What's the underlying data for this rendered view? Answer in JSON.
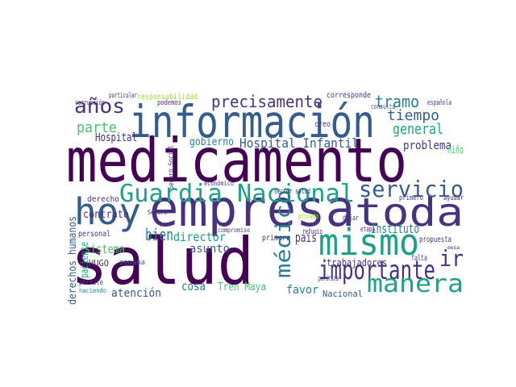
{
  "chart_data": {
    "type": "wordcloud",
    "words": [
      {
        "text": "medicamento",
        "weight": 75,
        "color": "#440154"
      },
      {
        "text": "salud",
        "weight": 80,
        "color": "#440154"
      },
      {
        "text": "empresa",
        "weight": 62,
        "color": "#46327e"
      },
      {
        "text": "información",
        "weight": 55,
        "color": "#365c8d"
      },
      {
        "text": "hoy",
        "weight": 45,
        "color": "#365c8d"
      },
      {
        "text": "toda",
        "weight": 48,
        "color": "#46327e"
      },
      {
        "text": "mismo",
        "weight": 45,
        "color": "#1fa187"
      },
      {
        "text": "Guardia Nacional",
        "weight": 30,
        "color": "#1fa187"
      },
      {
        "text": "importante",
        "weight": 32,
        "color": "#46327e"
      },
      {
        "text": "manera",
        "weight": 30,
        "color": "#1fa187"
      },
      {
        "text": "servicio",
        "weight": 28,
        "color": "#365c8d"
      },
      {
        "text": "años",
        "weight": 25,
        "color": "#46327e"
      },
      {
        "text": "precisamente",
        "weight": 20,
        "color": "#46327e"
      },
      {
        "text": "tramo",
        "weight": 20,
        "color": "#277f8e"
      },
      {
        "text": "parte",
        "weight": 18,
        "color": "#4ac16d"
      },
      {
        "text": "tiempo",
        "weight": 18,
        "color": "#365c8d"
      },
      {
        "text": "general",
        "weight": 18,
        "color": "#1fa187"
      },
      {
        "text": "Hospital Infantil",
        "weight": 16,
        "color": "#365c8d"
      },
      {
        "text": "médico",
        "weight": 26,
        "color": "#277f8e"
      },
      {
        "text": "ir",
        "weight": 28,
        "color": "#46327e"
      },
      {
        "text": "bien",
        "weight": 20,
        "color": "#277f8e"
      },
      {
        "text": "país",
        "weight": 16,
        "color": "#46327e"
      },
      {
        "text": "Instituto",
        "weight": 16,
        "color": "#277f8e"
      },
      {
        "text": "director",
        "weight": 15,
        "color": "#1fa187"
      },
      {
        "text": "sistema",
        "weight": 15,
        "color": "#4ac16d"
      },
      {
        "text": "asunto",
        "weight": 14,
        "color": "#365c8d"
      },
      {
        "text": "cosa",
        "weight": 15,
        "color": "#277f8e"
      },
      {
        "text": "atención",
        "weight": 14,
        "color": "#365c8d"
      },
      {
        "text": "favor",
        "weight": 14,
        "color": "#277f8e"
      },
      {
        "text": "Tren Maya",
        "weight": 13,
        "color": "#4ac16d"
      },
      {
        "text": "problema",
        "weight": 14,
        "color": "#46327e"
      },
      {
        "text": "Hospital",
        "weight": 14,
        "color": "#46327e"
      },
      {
        "text": "gobierno",
        "weight": 13,
        "color": "#277f8e"
      },
      {
        "text": "contrato",
        "weight": 13,
        "color": "#46327e"
      },
      {
        "text": "trabajadores",
        "weight": 12,
        "color": "#46327e"
      },
      {
        "text": "Nacional",
        "weight": 11,
        "color": "#365c8d"
      },
      {
        "text": "HUGO",
        "weight": 11,
        "color": "#46327e"
      },
      {
        "text": "derechos humanos",
        "weight": 13,
        "color": "#365c8d"
      },
      {
        "text": "paciente",
        "weight": 13,
        "color": "#1fa187"
      },
      {
        "text": "niño",
        "weight": 13,
        "color": "#4ac16d"
      },
      {
        "text": "responsabilidad",
        "weight": 10,
        "color": "#a0da39"
      },
      {
        "text": "corresponde",
        "weight": 10,
        "color": "#46327e"
      },
      {
        "text": "creo",
        "weight": 10,
        "color": "#46327e"
      },
      {
        "text": "primera",
        "weight": 10,
        "color": "#46327e"
      },
      {
        "text": "personal",
        "weight": 10,
        "color": "#46327e"
      },
      {
        "text": "derecho",
        "weight": 10,
        "color": "#46327e"
      },
      {
        "text": "propuesta",
        "weight": 10,
        "color": "#46327e"
      },
      {
        "text": "semana",
        "weight": 9,
        "color": "#365c8d"
      },
      {
        "text": "permite",
        "weight": 9,
        "color": "#46327e"
      },
      {
        "text": "haciendo",
        "weight": 8,
        "color": "#277f8e"
      },
      {
        "text": "política",
        "weight": 9,
        "color": "#46327e"
      },
      {
        "text": "refugio",
        "weight": 9,
        "color": "#46327e"
      },
      {
        "text": "etapa",
        "weight": 9,
        "color": "#46327e"
      },
      {
        "text": "privado",
        "weight": 9,
        "color": "#a0da39"
      },
      {
        "text": "corrupción",
        "weight": 9,
        "color": "#46327e"
      },
      {
        "text": "particular",
        "weight": 9,
        "color": "#46327e"
      },
      {
        "text": "podemos",
        "weight": 9,
        "color": "#46327e"
      },
      {
        "text": "sector salud",
        "weight": 9,
        "color": "#46327e"
      },
      {
        "text": "Seguro Social",
        "weight": 9,
        "color": "#46327e"
      },
      {
        "text": "primero",
        "weight": 9,
        "color": "#46327e"
      },
      {
        "text": "ayudar",
        "weight": 9,
        "color": "#46327e"
      },
      {
        "text": "falta",
        "weight": 10,
        "color": "#46327e"
      },
      {
        "text": "consulta",
        "weight": 9,
        "color": "#365c8d"
      },
      {
        "text": "española",
        "weight": 9,
        "color": "#46327e"
      },
      {
        "text": "dejar",
        "weight": 9,
        "color": "#46327e"
      },
      {
        "text": "Seguro",
        "weight": 8,
        "color": "#46327e"
      },
      {
        "text": "económico",
        "weight": 8,
        "color": "#46327e"
      },
      {
        "text": "compromiso",
        "weight": 8,
        "color": "#46327e"
      },
      {
        "text": "mesa",
        "weight": 6,
        "color": "#46327e"
      }
    ]
  }
}
